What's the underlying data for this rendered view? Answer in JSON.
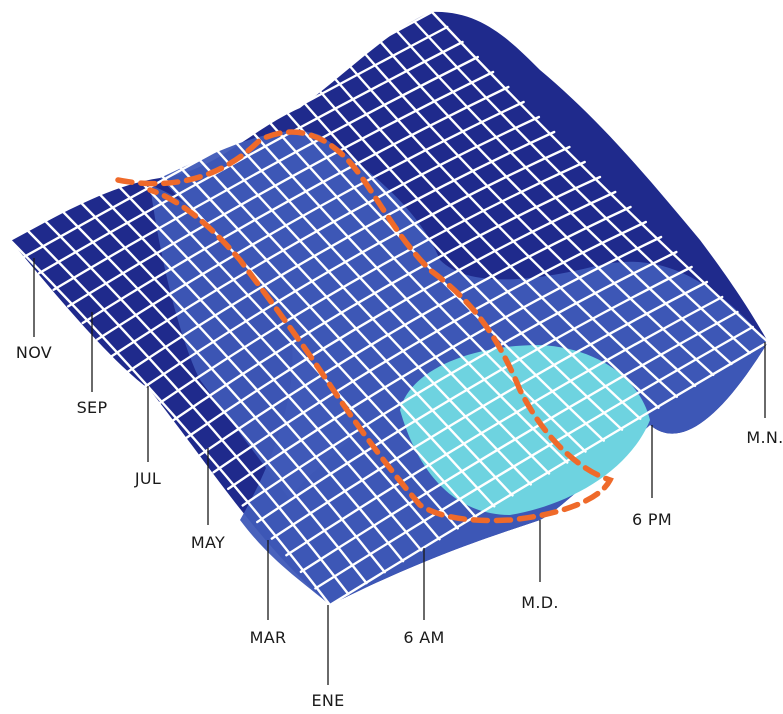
{
  "chart_data": {
    "type": "surface",
    "title": "",
    "month_axis": {
      "tick_labels": [
        "NOV",
        "SEP",
        "JUL",
        "MAY",
        "MAR",
        "ENE"
      ]
    },
    "hour_axis": {
      "tick_labels": [
        "6 AM",
        "M.D.",
        "6 PM",
        "M.N."
      ]
    },
    "surface_colors": [
      "#1f2a8c",
      "#3f5ab8",
      "#6ed3e0"
    ],
    "grid_color": "#ffffff",
    "highlight_contour_color": "#ef6a2a"
  }
}
